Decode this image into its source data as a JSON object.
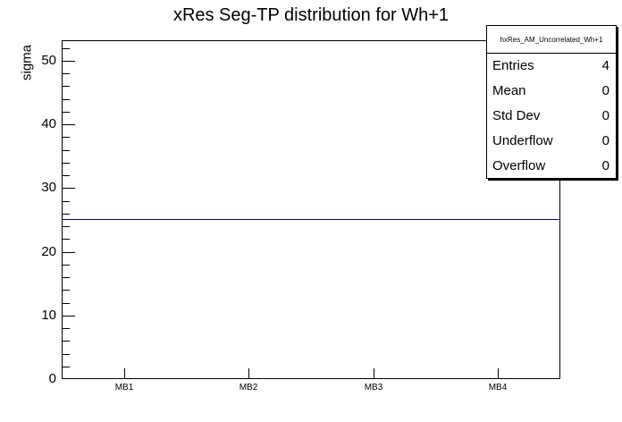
{
  "chart_data": {
    "type": "line",
    "title": "xRes Seg-TP distribution for Wh+1",
    "xlabel": "",
    "ylabel": "sigma",
    "categories": [
      "MB1",
      "MB2",
      "MB3",
      "MB4"
    ],
    "series": [
      {
        "name": "hxRes_AM_Uncorrelated_Wh+1",
        "values": [
          25,
          25,
          25,
          25
        ]
      }
    ],
    "ylim": [
      0,
      53.2
    ],
    "y_major_ticks": [
      0,
      10,
      20,
      30,
      40,
      50
    ],
    "y_minor_step": 2,
    "grid": false,
    "legend_position": "none",
    "line_color": "#000099"
  },
  "stats_box": {
    "title": "hxRes_AM_Uncorrelated_Wh+1",
    "rows": [
      {
        "label": "Entries",
        "value": "4"
      },
      {
        "label": "Mean",
        "value": "0"
      },
      {
        "label": "Std Dev",
        "value": "0"
      },
      {
        "label": "Underflow",
        "value": "0"
      },
      {
        "label": "Overflow",
        "value": "0"
      }
    ]
  },
  "colors": {
    "background": "#ffffff",
    "axis": "#000000",
    "histogram_line": "#000099"
  }
}
